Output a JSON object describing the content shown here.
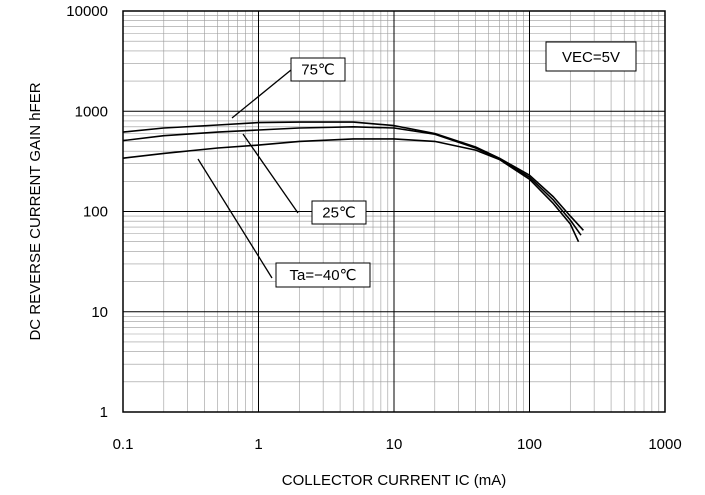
{
  "chart_data": {
    "type": "line",
    "title": "",
    "xlabel": "COLLECTOR CURRENT IC (mA)",
    "ylabel": "DC REVERSE CURRENT GAIN hFER",
    "x_scale": "log",
    "y_scale": "log",
    "xlim": [
      0.1,
      1000
    ],
    "ylim": [
      1,
      10000
    ],
    "grid": true,
    "x_ticks": [
      "0.1",
      "1",
      "10",
      "100",
      "1000"
    ],
    "y_ticks": [
      "1",
      "10",
      "100",
      "1000",
      "10000"
    ],
    "condition_label": "VEC=5V",
    "series": [
      {
        "name": "75℃",
        "points": [
          [
            0.1,
            620
          ],
          [
            0.2,
            680
          ],
          [
            0.5,
            730
          ],
          [
            1,
            770
          ],
          [
            2,
            780
          ],
          [
            5,
            780
          ],
          [
            10,
            720
          ],
          [
            20,
            600
          ],
          [
            40,
            440
          ],
          [
            60,
            340
          ],
          [
            100,
            230
          ],
          [
            150,
            140
          ],
          [
            200,
            90
          ],
          [
            250,
            65
          ]
        ]
      },
      {
        "name": "25℃",
        "points": [
          [
            0.1,
            510
          ],
          [
            0.2,
            570
          ],
          [
            0.5,
            620
          ],
          [
            1,
            650
          ],
          [
            2,
            680
          ],
          [
            5,
            700
          ],
          [
            10,
            680
          ],
          [
            20,
            590
          ],
          [
            40,
            430
          ],
          [
            60,
            335
          ],
          [
            100,
            220
          ],
          [
            150,
            130
          ],
          [
            200,
            82
          ],
          [
            240,
            58
          ]
        ]
      },
      {
        "name": "Ta=−40℃",
        "points": [
          [
            0.1,
            340
          ],
          [
            0.2,
            380
          ],
          [
            0.5,
            430
          ],
          [
            1,
            460
          ],
          [
            2,
            500
          ],
          [
            5,
            530
          ],
          [
            10,
            530
          ],
          [
            20,
            500
          ],
          [
            40,
            410
          ],
          [
            60,
            330
          ],
          [
            100,
            210
          ],
          [
            150,
            120
          ],
          [
            200,
            75
          ],
          [
            230,
            50
          ]
        ]
      }
    ],
    "annotations": [
      {
        "id": "75c",
        "text": "75℃"
      },
      {
        "id": "25c",
        "text": "25℃"
      },
      {
        "id": "m40c",
        "text": "Ta=−40℃"
      }
    ]
  }
}
